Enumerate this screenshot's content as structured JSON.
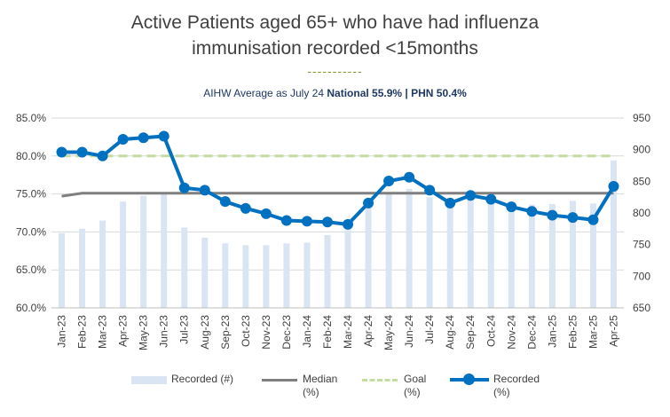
{
  "chart_data": {
    "type": "bar",
    "title_line1": "Active Patients aged 65+ who have had influenza",
    "title_line2": "immunisation recorded <15months",
    "decoration": "-----------",
    "subtitle": {
      "prefix": "AIHW Average as July 24 ",
      "national": "National 55.9%",
      "separator": " | ",
      "phn": "PHN 50.4%"
    },
    "categories": [
      "Jan-23",
      "Feb-23",
      "Mar-23",
      "Apr-23",
      "May-23",
      "Jun-23",
      "Jul-23",
      "Aug-23",
      "Sep-23",
      "Oct-23",
      "Nov-23",
      "Dec-23",
      "Jan-24",
      "Feb-24",
      "Mar-24",
      "Apr-24",
      "May-24",
      "Jun-24",
      "Jul-24",
      "Aug-24",
      "Sep-24",
      "Oct-24",
      "Nov-24",
      "Dec-24",
      "Jan-25",
      "Feb-25",
      "Mar-25",
      "Apr-25"
    ],
    "y_left": {
      "min": 0.6,
      "max": 0.85,
      "ticks": [
        "60.0%",
        "65.0%",
        "70.0%",
        "75.0%",
        "80.0%",
        "85.0%"
      ]
    },
    "y_right": {
      "min": 650,
      "max": 950,
      "ticks": [
        "650",
        "700",
        "750",
        "800",
        "850",
        "900",
        "950"
      ]
    },
    "series": [
      {
        "name": "Recorded (#)",
        "axis": "right",
        "kind": "bar",
        "color": "#dae5f3",
        "values": [
          768,
          775,
          788,
          818,
          827,
          831,
          777,
          761,
          752,
          749,
          749,
          752,
          753,
          765,
          773,
          815,
          833,
          838,
          825,
          818,
          827,
          825,
          818,
          813,
          814,
          819,
          815,
          883
        ]
      },
      {
        "name": "Median (%)",
        "axis": "left",
        "kind": "line",
        "color": "#7f7f7f",
        "values": [
          0.747,
          0.751,
          0.751,
          0.751,
          0.751,
          0.751,
          0.751,
          0.751,
          0.751,
          0.751,
          0.751,
          0.751,
          0.751,
          0.751,
          0.751,
          0.751,
          0.751,
          0.751,
          0.751,
          0.751,
          0.751,
          0.751,
          0.751,
          0.751,
          0.751,
          0.751,
          0.751,
          0.751
        ]
      },
      {
        "name": "Goal (%)",
        "axis": "left",
        "kind": "dashed",
        "color": "#c5dc9f",
        "values": [
          0.8,
          0.8,
          0.8,
          0.8,
          0.8,
          0.8,
          0.8,
          0.8,
          0.8,
          0.8,
          0.8,
          0.8,
          0.8,
          0.8,
          0.8,
          0.8,
          0.8,
          0.8,
          0.8,
          0.8,
          0.8,
          0.8,
          0.8,
          0.8,
          0.8,
          0.8,
          0.8,
          0.8
        ]
      },
      {
        "name": "Recorded (%)",
        "axis": "left",
        "kind": "line-marker",
        "color": "#0070c0",
        "values": [
          0.805,
          0.805,
          0.8,
          0.822,
          0.824,
          0.826,
          0.758,
          0.755,
          0.74,
          0.731,
          0.724,
          0.715,
          0.714,
          0.713,
          0.71,
          0.738,
          0.767,
          0.772,
          0.755,
          0.738,
          0.748,
          0.743,
          0.733,
          0.727,
          0.722,
          0.719,
          0.716,
          0.76
        ]
      }
    ],
    "legend": [
      {
        "label1": "Recorded (#)",
        "label2": ""
      },
      {
        "label1": "Median",
        "label2": "(%)"
      },
      {
        "label1": "Goal",
        "label2": "(%)"
      },
      {
        "label1": "Recorded",
        "label2": "(%)"
      }
    ],
    "grid": true
  }
}
